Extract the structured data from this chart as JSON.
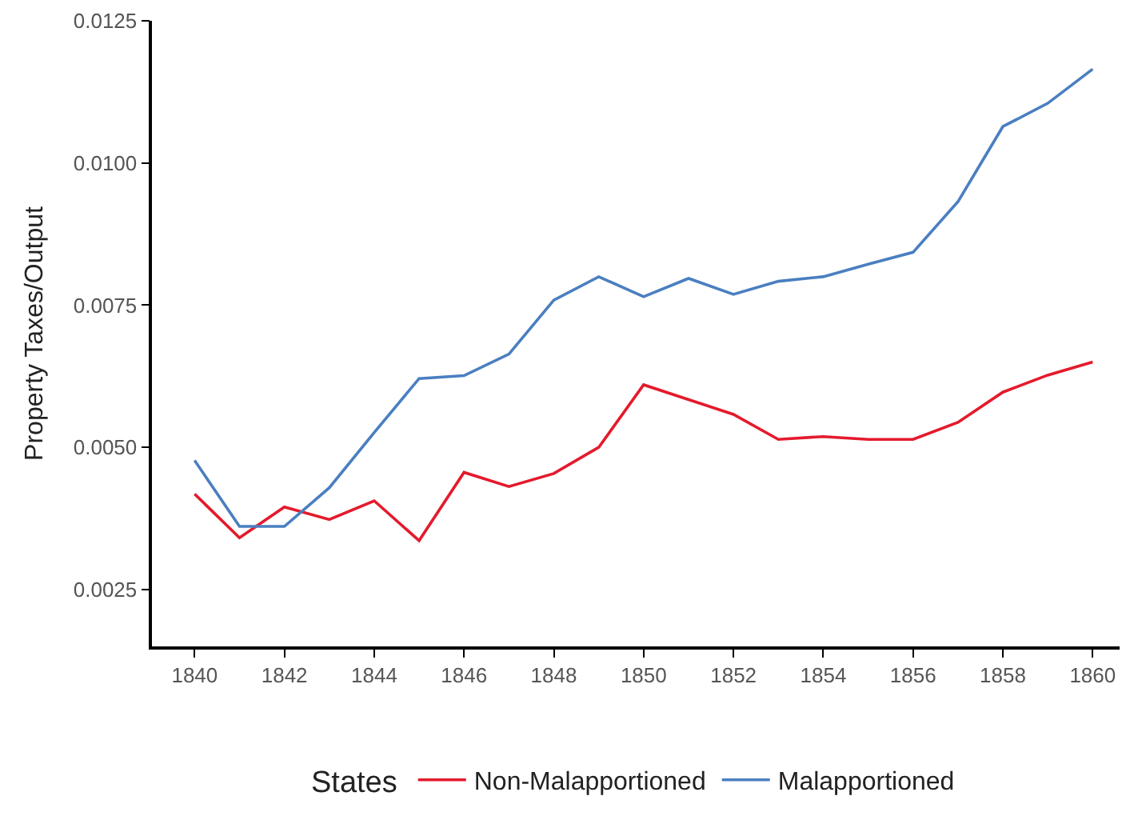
{
  "chart_data": {
    "type": "line",
    "ylabel": "Property Taxes/Output",
    "legend_title": "States",
    "x": [
      1840,
      1841,
      1842,
      1843,
      1844,
      1845,
      1846,
      1847,
      1848,
      1849,
      1850,
      1851,
      1852,
      1853,
      1854,
      1855,
      1856,
      1857,
      1858,
      1859,
      1860
    ],
    "series": [
      {
        "name": "Non-Malapportioned",
        "color": "#e41a2c",
        "values": [
          0.00418,
          0.00341,
          0.00395,
          0.00373,
          0.00406,
          0.00336,
          0.00456,
          0.00431,
          0.00454,
          0.005,
          0.0061,
          0.00584,
          0.00558,
          0.00514,
          0.00519,
          0.00514,
          0.00514,
          0.00544,
          0.00597,
          0.00627,
          0.0065
        ]
      },
      {
        "name": "Malapportioned",
        "color": "#4a7fc0",
        "values": [
          0.00477,
          0.00361,
          0.00361,
          0.00429,
          0.00526,
          0.00621,
          0.00626,
          0.00664,
          0.00759,
          0.008,
          0.00765,
          0.00797,
          0.00769,
          0.00792,
          0.008,
          0.00822,
          0.00843,
          0.00932,
          0.01064,
          0.01105,
          0.01165
        ]
      }
    ],
    "xlim": [
      1839.05,
      1860.6
    ],
    "xticks": [
      1840,
      1842,
      1844,
      1846,
      1848,
      1850,
      1852,
      1854,
      1856,
      1858,
      1860
    ],
    "ylim": [
      0.0015,
      0.0125
    ],
    "yticks": [
      {
        "value": 0.0025,
        "label": "0.0025"
      },
      {
        "value": 0.005,
        "label": "0.0050"
      },
      {
        "value": 0.0075,
        "label": "0.0075"
      },
      {
        "value": 0.01,
        "label": "0.0100"
      },
      {
        "value": 0.0125,
        "label": "0.0125"
      }
    ],
    "legend": "bottom",
    "marker": "none",
    "line_style": "solid"
  }
}
